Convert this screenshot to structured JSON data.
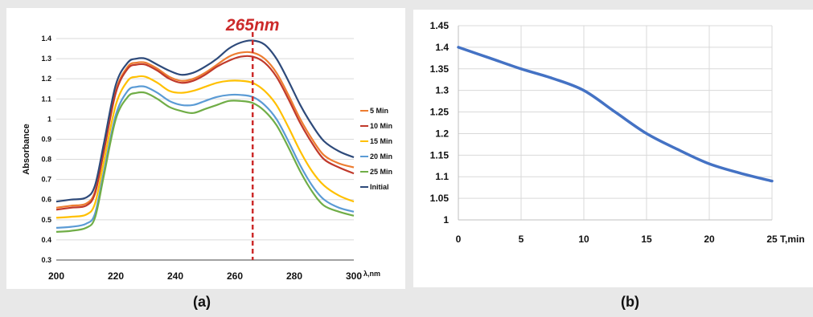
{
  "chart_data": [
    {
      "type": "line",
      "panel_label": "(a)",
      "xlabel": "λ,nm",
      "ylabel": "Absorbance",
      "xlim": [
        200,
        300
      ],
      "ylim": [
        0.3,
        1.4
      ],
      "x_ticks": [
        200,
        220,
        240,
        260,
        280,
        300
      ],
      "y_ticks": [
        "0.3",
        "0.4",
        "0.5",
        "0.6",
        "0.7",
        "0.8",
        "0.9",
        "1",
        "1.1",
        "1.2",
        "1.3",
        "1.4"
      ],
      "grid": "horizontal",
      "legend_position": "right",
      "annotation": {
        "text": "265nm",
        "x": 266,
        "line_color": "#cc2a2a",
        "style": "dashed"
      },
      "series": [
        {
          "name": "5 Min",
          "color": "#ed7d31",
          "x": [
            200,
            205,
            210,
            213,
            216,
            220,
            224,
            227,
            230,
            234,
            238,
            242,
            246,
            250,
            254,
            258,
            262,
            266,
            270,
            274,
            278,
            282,
            286,
            290,
            295,
            300
          ],
          "y": [
            0.56,
            0.57,
            0.58,
            0.64,
            0.85,
            1.14,
            1.26,
            1.28,
            1.28,
            1.25,
            1.21,
            1.19,
            1.2,
            1.23,
            1.27,
            1.31,
            1.33,
            1.33,
            1.3,
            1.23,
            1.12,
            1.0,
            0.9,
            0.82,
            0.78,
            0.76
          ]
        },
        {
          "name": "10 Min",
          "color": "#c0392b",
          "x": [
            200,
            205,
            210,
            213,
            216,
            220,
            224,
            227,
            230,
            234,
            238,
            242,
            246,
            250,
            254,
            258,
            262,
            266,
            270,
            274,
            278,
            282,
            286,
            290,
            295,
            300
          ],
          "y": [
            0.55,
            0.56,
            0.57,
            0.63,
            0.84,
            1.13,
            1.25,
            1.27,
            1.27,
            1.24,
            1.2,
            1.18,
            1.19,
            1.22,
            1.26,
            1.29,
            1.31,
            1.31,
            1.28,
            1.21,
            1.1,
            0.98,
            0.88,
            0.8,
            0.76,
            0.73
          ]
        },
        {
          "name": "15 Min",
          "color": "#ffc000",
          "x": [
            200,
            205,
            210,
            213,
            216,
            220,
            224,
            227,
            230,
            234,
            238,
            242,
            246,
            250,
            254,
            258,
            262,
            266,
            270,
            274,
            278,
            282,
            286,
            290,
            295,
            300
          ],
          "y": [
            0.51,
            0.515,
            0.525,
            0.58,
            0.79,
            1.07,
            1.19,
            1.21,
            1.21,
            1.18,
            1.14,
            1.13,
            1.14,
            1.16,
            1.18,
            1.19,
            1.19,
            1.18,
            1.14,
            1.07,
            0.96,
            0.84,
            0.74,
            0.67,
            0.62,
            0.59
          ]
        },
        {
          "name": "20 Min",
          "color": "#5b9bd5",
          "x": [
            200,
            205,
            210,
            213,
            216,
            220,
            224,
            227,
            230,
            234,
            238,
            242,
            246,
            250,
            254,
            258,
            262,
            266,
            270,
            274,
            278,
            282,
            286,
            290,
            295,
            300
          ],
          "y": [
            0.46,
            0.465,
            0.48,
            0.53,
            0.74,
            1.02,
            1.14,
            1.16,
            1.16,
            1.13,
            1.09,
            1.07,
            1.07,
            1.09,
            1.11,
            1.12,
            1.12,
            1.11,
            1.07,
            1.0,
            0.89,
            0.77,
            0.67,
            0.6,
            0.56,
            0.54
          ]
        },
        {
          "name": "25 Min",
          "color": "#70ad47",
          "x": [
            200,
            205,
            210,
            213,
            216,
            220,
            224,
            227,
            230,
            234,
            238,
            242,
            246,
            250,
            254,
            258,
            262,
            266,
            270,
            274,
            278,
            282,
            286,
            290,
            295,
            300
          ],
          "y": [
            0.44,
            0.445,
            0.46,
            0.51,
            0.72,
            1.0,
            1.11,
            1.13,
            1.13,
            1.1,
            1.06,
            1.04,
            1.03,
            1.05,
            1.07,
            1.09,
            1.09,
            1.08,
            1.04,
            0.97,
            0.86,
            0.74,
            0.64,
            0.57,
            0.54,
            0.52
          ]
        },
        {
          "name": "Initial",
          "color": "#2e4a7a",
          "x": [
            200,
            205,
            210,
            213,
            216,
            220,
            224,
            227,
            230,
            234,
            238,
            242,
            246,
            250,
            254,
            258,
            262,
            266,
            270,
            274,
            278,
            282,
            286,
            290,
            295,
            300
          ],
          "y": [
            0.59,
            0.6,
            0.61,
            0.67,
            0.88,
            1.17,
            1.28,
            1.3,
            1.3,
            1.27,
            1.24,
            1.22,
            1.23,
            1.26,
            1.3,
            1.35,
            1.38,
            1.39,
            1.37,
            1.3,
            1.19,
            1.07,
            0.97,
            0.89,
            0.84,
            0.81
          ]
        }
      ]
    },
    {
      "type": "line",
      "panel_label": "(b)",
      "xlabel": "T,min",
      "xlim": [
        0,
        25
      ],
      "ylim": [
        1,
        1.45
      ],
      "x_ticks": [
        0,
        5,
        10,
        15,
        20,
        25
      ],
      "y_ticks": [
        "1",
        "1.05",
        "1.1",
        "1.15",
        "1.2",
        "1.25",
        "1.3",
        "1.35",
        "1.4",
        "1.45"
      ],
      "grid": "both",
      "series": [
        {
          "color": "#4472c4",
          "x": [
            0,
            2.5,
            5,
            7.5,
            10,
            12.5,
            15,
            17.5,
            20,
            22.5,
            25
          ],
          "y": [
            1.4,
            1.375,
            1.35,
            1.328,
            1.3,
            1.25,
            1.2,
            1.163,
            1.13,
            1.108,
            1.09
          ]
        }
      ]
    }
  ]
}
